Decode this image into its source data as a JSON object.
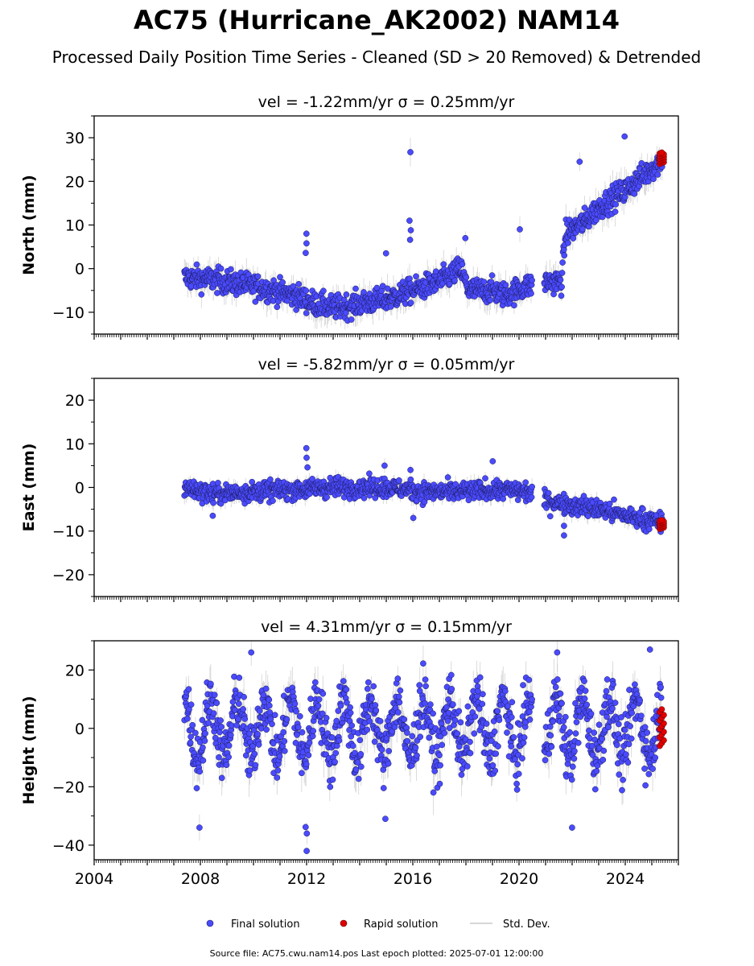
{
  "title": "AC75 (Hurricane_AK2002) NAM14",
  "subtitle": "Processed Daily Position Time Series - Cleaned (SD > 20 Removed) & Detrended",
  "legend": {
    "final": "Final solution",
    "rapid": "Rapid solution",
    "std": "Std. Dev."
  },
  "footer": "Source file: AC75.cwu.nam14.pos  Last epoch plotted: 2025-07-01 12:00:00",
  "colors": {
    "final": "#4a4aff",
    "final_edge": "#1a1a55",
    "rapid": "#e00000",
    "std": "#b0b0b0"
  },
  "chart_data": [
    {
      "type": "scatter",
      "panel": "north",
      "title": "vel = -1.22mm/yr   σ = 0.25mm/yr",
      "ylabel": "North (mm)",
      "xlim": [
        2004.0,
        2026.0
      ],
      "ylim": [
        -15,
        35
      ],
      "yticks": [
        -10,
        0,
        10,
        20,
        30
      ],
      "xticks": [
        2004,
        2008,
        2012,
        2016,
        2020,
        2024
      ],
      "xtick_labels": [],
      "grid": false,
      "trend": [
        [
          2007.4,
          -2
        ],
        [
          2008.5,
          -2.5
        ],
        [
          2010.0,
          -4
        ],
        [
          2011.5,
          -6
        ],
        [
          2012.3,
          -8
        ],
        [
          2013.0,
          -9
        ],
        [
          2014.0,
          -8
        ],
        [
          2015.0,
          -7
        ],
        [
          2016.0,
          -5
        ],
        [
          2017.0,
          -3
        ],
        [
          2017.8,
          0
        ],
        [
          2018.1,
          -5
        ],
        [
          2019.0,
          -5
        ],
        [
          2019.5,
          -6
        ],
        [
          2020.3,
          -4
        ],
        [
          2021.0,
          -3
        ],
        [
          2021.6,
          -3
        ],
        [
          2021.75,
          8
        ],
        [
          2022.5,
          11
        ],
        [
          2023.0,
          14
        ],
        [
          2024.0,
          18
        ],
        [
          2025.0,
          23
        ],
        [
          2025.4,
          25
        ]
      ],
      "gaps": [
        [
          2020.5,
          2020.95
        ]
      ],
      "spikes": [
        [
          2012.0,
          8,
          3
        ],
        [
          2015.9,
          26.7,
          1
        ],
        [
          2015.9,
          11,
          3
        ],
        [
          2020.0,
          9,
          1
        ],
        [
          2015.0,
          3.5,
          1
        ],
        [
          2018.0,
          7,
          1
        ],
        [
          2024.0,
          30.3,
          1
        ],
        [
          2022.3,
          24.5,
          1
        ]
      ],
      "noise": 1.4,
      "spread": 2.6,
      "rapid": {
        "x": [
          2025.3,
          2025.45
        ],
        "y": [
          24,
          26.6
        ]
      }
    },
    {
      "type": "scatter",
      "panel": "east",
      "title": "vel = -5.82mm/yr   σ = 0.05mm/yr",
      "ylabel": "East (mm)",
      "xlim": [
        2004.0,
        2026.0
      ],
      "ylim": [
        -25,
        25
      ],
      "yticks": [
        -20,
        -10,
        0,
        10,
        20
      ],
      "xticks": [
        2004,
        2008,
        2012,
        2016,
        2020,
        2024
      ],
      "xtick_labels": [],
      "grid": false,
      "trend": [
        [
          2007.4,
          0
        ],
        [
          2008.5,
          -1.5
        ],
        [
          2010.0,
          -1
        ],
        [
          2011.5,
          -0.5
        ],
        [
          2013.0,
          0
        ],
        [
          2015.0,
          0
        ],
        [
          2016.5,
          -1
        ],
        [
          2018.0,
          -1
        ],
        [
          2019.5,
          -0.5
        ],
        [
          2020.3,
          -1
        ],
        [
          2021.0,
          -3
        ],
        [
          2022.0,
          -4
        ],
        [
          2023.0,
          -5
        ],
        [
          2024.0,
          -6.5
        ],
        [
          2025.4,
          -8
        ]
      ],
      "gaps": [
        [
          2020.5,
          2020.95
        ]
      ],
      "spikes": [
        [
          2012.0,
          9,
          3
        ],
        [
          2015.9,
          4,
          2
        ],
        [
          2014.9,
          5,
          1
        ],
        [
          2019.0,
          6,
          1
        ],
        [
          2016.0,
          -7,
          1
        ],
        [
          2021.7,
          -11,
          2
        ],
        [
          2008.5,
          -6.5,
          1
        ]
      ],
      "noise": 1.1,
      "spread": 1.5,
      "rapid": {
        "x": [
          2025.3,
          2025.45
        ],
        "y": [
          -9.5,
          -7.5
        ]
      }
    },
    {
      "type": "scatter",
      "panel": "height",
      "title": "vel = 4.31mm/yr   σ = 0.15mm/yr",
      "ylabel": "Height (mm)",
      "xlim": [
        2004.0,
        2026.0
      ],
      "ylim": [
        -45,
        30
      ],
      "yticks": [
        -40,
        -20,
        0,
        20
      ],
      "xticks": [
        2004,
        2008,
        2012,
        2016,
        2020,
        2024
      ],
      "xtick_labels": [
        "2004",
        "2008",
        "2012",
        "2016",
        "2020",
        "2024"
      ],
      "grid": false,
      "trend": [
        [
          2007.4,
          0
        ],
        [
          2025.4,
          0
        ]
      ],
      "gaps": [
        [
          2020.5,
          2020.95
        ]
      ],
      "seasonal": 10,
      "spikes": [
        [
          2012.0,
          -42,
          1
        ],
        [
          2012.0,
          -36,
          2
        ],
        [
          2008.0,
          -34,
          1
        ],
        [
          2015.0,
          -31,
          1
        ],
        [
          2021.4,
          26,
          1
        ],
        [
          2022.0,
          -34,
          1
        ],
        [
          2009.95,
          26,
          1
        ],
        [
          2024.9,
          27,
          1
        ]
      ],
      "noise": 5,
      "spread": 6,
      "rapid": {
        "x": [
          2025.3,
          2025.45
        ],
        "y": [
          -6,
          6.5
        ]
      }
    }
  ]
}
